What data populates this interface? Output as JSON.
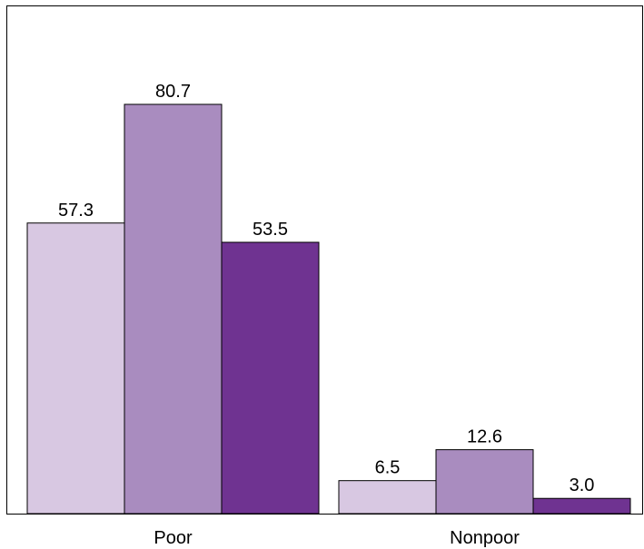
{
  "chart_data": {
    "type": "bar",
    "categories": [
      "Poor",
      "Nonpoor"
    ],
    "series": [
      {
        "values": [
          57.3,
          6.5
        ],
        "color": "#d8c8e2"
      },
      {
        "values": [
          80.7,
          12.6
        ],
        "color": "#a98cbf"
      },
      {
        "values": [
          53.5,
          3.0
        ],
        "color": "#6f3391"
      }
    ],
    "value_labels": [
      [
        "57.3",
        "6.5"
      ],
      [
        "80.7",
        "12.6"
      ],
      [
        "53.5",
        "3.0"
      ]
    ],
    "ylim": [
      0,
      100
    ],
    "grid": false,
    "legend": "none",
    "title": "",
    "xlabel": "",
    "ylabel": ""
  }
}
